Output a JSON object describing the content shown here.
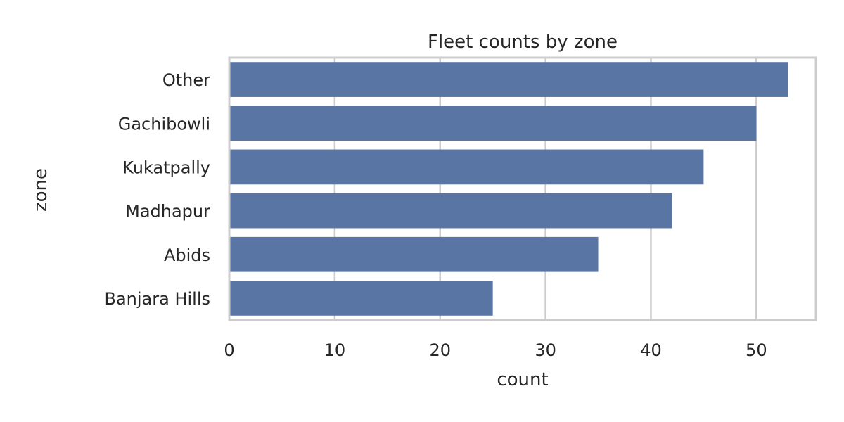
{
  "chart_data": {
    "type": "bar",
    "orientation": "horizontal",
    "title": "Fleet counts by zone",
    "xlabel": "count",
    "ylabel": "zone",
    "categories": [
      "Other",
      "Gachibowli",
      "Kukatpally",
      "Madhapur",
      "Abids",
      "Banjara Hills"
    ],
    "values": [
      53,
      50,
      45,
      42,
      35,
      25
    ],
    "xlim": [
      0,
      55.65
    ],
    "xticks": [
      0,
      10,
      20,
      30,
      40,
      50
    ],
    "grid": true,
    "bar_color": "#5975a4",
    "grid_color": "#cccccc",
    "frame_color": "#cccccc"
  }
}
